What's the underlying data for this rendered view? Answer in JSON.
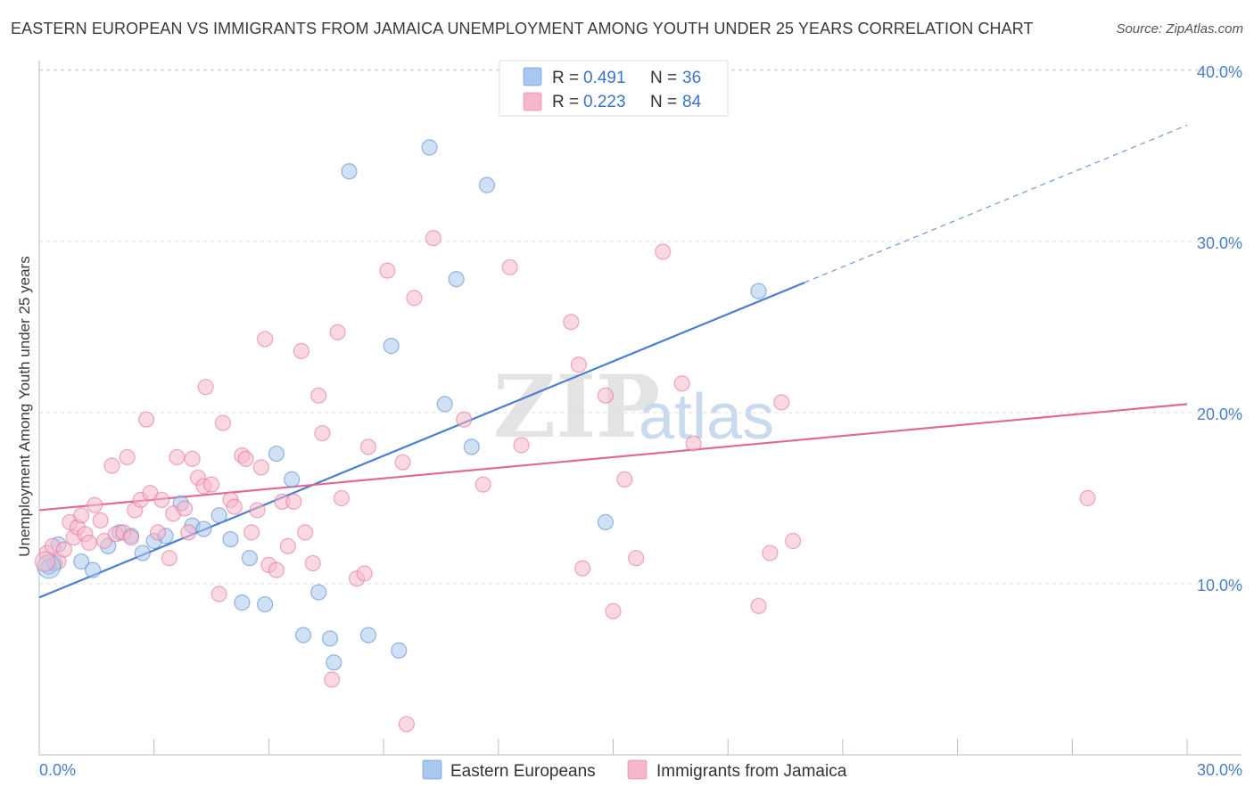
{
  "title": "EASTERN EUROPEAN VS IMMIGRANTS FROM JAMAICA UNEMPLOYMENT AMONG YOUTH UNDER 25 YEARS CORRELATION CHART",
  "source": "Source: ZipAtlas.com",
  "watermark": {
    "zip": "ZIP",
    "atlas": "atlas"
  },
  "legend": {
    "r_label": "R =",
    "n_label": "N =",
    "rows": [
      {
        "r": "0.491",
        "n": "36",
        "color": "#a9c8ef"
      },
      {
        "r": "0.223",
        "n": "84",
        "color": "#f5b8cb"
      }
    ]
  },
  "bottom_legend": [
    "Eastern Europeans",
    "Immigrants from Jamaica"
  ],
  "chart_data": {
    "type": "scatter",
    "ylabel": "Unemployment Among Youth under 25 years",
    "xlim": [
      0,
      30
    ],
    "ylim": [
      0,
      41
    ],
    "x_tick_labels": [
      "0.0%",
      "30.0%"
    ],
    "y_ticks": [
      10,
      20,
      30,
      40
    ],
    "y_tick_labels": [
      "10.0%",
      "20.0%",
      "30.0%",
      "40.0%"
    ],
    "grid": true,
    "series": [
      {
        "name": "Eastern Europeans",
        "color": "#4a7fd0",
        "fill": "#a9c8ef",
        "trend": {
          "x0": 0,
          "y0": 9.2,
          "x1": 20.0,
          "y1": 27.6,
          "dash_to_x": 30,
          "dash_to_y": 36.8
        },
        "points": [
          [
            0.25,
            11.0
          ],
          [
            0.5,
            12.3
          ],
          [
            1.1,
            11.3
          ],
          [
            1.4,
            10.8
          ],
          [
            1.8,
            12.2
          ],
          [
            2.1,
            13.0
          ],
          [
            2.4,
            12.8
          ],
          [
            2.7,
            11.8
          ],
          [
            3.0,
            12.5
          ],
          [
            3.3,
            12.8
          ],
          [
            3.7,
            14.7
          ],
          [
            4.0,
            13.4
          ],
          [
            4.3,
            13.2
          ],
          [
            4.7,
            14.0
          ],
          [
            5.0,
            12.6
          ],
          [
            5.3,
            8.9
          ],
          [
            5.5,
            11.5
          ],
          [
            5.9,
            8.8
          ],
          [
            6.2,
            17.6
          ],
          [
            6.6,
            16.1
          ],
          [
            6.9,
            7.0
          ],
          [
            7.3,
            9.5
          ],
          [
            7.6,
            6.8
          ],
          [
            7.7,
            5.4
          ],
          [
            8.1,
            34.1
          ],
          [
            8.6,
            7.0
          ],
          [
            9.2,
            23.9
          ],
          [
            9.4,
            6.1
          ],
          [
            10.2,
            35.5
          ],
          [
            10.6,
            20.5
          ],
          [
            10.9,
            27.8
          ],
          [
            11.3,
            18.0
          ],
          [
            11.7,
            33.3
          ],
          [
            14.8,
            13.6
          ],
          [
            18.8,
            27.1
          ],
          [
            0.4,
            11.2
          ]
        ]
      },
      {
        "name": "Immigrants from Jamaica",
        "color": "#e06a94",
        "fill": "#f5b8cb",
        "trend": {
          "x0": 0,
          "y0": 14.3,
          "x1": 30,
          "y1": 20.5
        },
        "points": [
          [
            0.2,
            11.8
          ],
          [
            0.35,
            12.2
          ],
          [
            0.5,
            11.3
          ],
          [
            0.65,
            12.0
          ],
          [
            0.8,
            13.6
          ],
          [
            0.9,
            12.7
          ],
          [
            1.0,
            13.3
          ],
          [
            1.1,
            14.0
          ],
          [
            1.2,
            12.9
          ],
          [
            1.3,
            12.4
          ],
          [
            1.45,
            14.6
          ],
          [
            1.6,
            13.7
          ],
          [
            1.7,
            12.5
          ],
          [
            1.9,
            16.9
          ],
          [
            2.0,
            12.9
          ],
          [
            2.2,
            13.0
          ],
          [
            2.3,
            17.4
          ],
          [
            2.4,
            12.7
          ],
          [
            2.5,
            14.3
          ],
          [
            2.65,
            14.9
          ],
          [
            2.8,
            19.6
          ],
          [
            2.9,
            15.3
          ],
          [
            3.1,
            13.0
          ],
          [
            3.2,
            14.9
          ],
          [
            3.4,
            11.5
          ],
          [
            3.5,
            14.1
          ],
          [
            3.6,
            17.4
          ],
          [
            3.8,
            14.4
          ],
          [
            3.9,
            13.0
          ],
          [
            4.0,
            17.3
          ],
          [
            4.15,
            16.2
          ],
          [
            4.3,
            15.7
          ],
          [
            4.35,
            21.5
          ],
          [
            4.5,
            15.8
          ],
          [
            4.7,
            9.4
          ],
          [
            4.8,
            19.4
          ],
          [
            5.0,
            14.9
          ],
          [
            5.1,
            14.5
          ],
          [
            5.3,
            17.5
          ],
          [
            5.4,
            17.3
          ],
          [
            5.55,
            13.0
          ],
          [
            5.7,
            14.3
          ],
          [
            5.8,
            16.8
          ],
          [
            5.9,
            24.3
          ],
          [
            6.0,
            11.1
          ],
          [
            6.2,
            10.8
          ],
          [
            6.35,
            14.8
          ],
          [
            6.5,
            12.2
          ],
          [
            6.65,
            14.8
          ],
          [
            6.85,
            23.6
          ],
          [
            6.95,
            13.0
          ],
          [
            7.15,
            11.2
          ],
          [
            7.3,
            21.0
          ],
          [
            7.4,
            18.8
          ],
          [
            7.65,
            4.4
          ],
          [
            7.8,
            24.7
          ],
          [
            7.9,
            15.0
          ],
          [
            8.3,
            10.3
          ],
          [
            8.5,
            10.6
          ],
          [
            8.6,
            18.0
          ],
          [
            9.1,
            28.3
          ],
          [
            9.5,
            17.1
          ],
          [
            9.6,
            1.8
          ],
          [
            9.8,
            26.7
          ],
          [
            10.3,
            30.2
          ],
          [
            11.1,
            19.6
          ],
          [
            11.6,
            15.8
          ],
          [
            12.3,
            28.5
          ],
          [
            12.6,
            18.1
          ],
          [
            13.9,
            25.3
          ],
          [
            14.1,
            22.8
          ],
          [
            14.2,
            10.9
          ],
          [
            14.8,
            21.0
          ],
          [
            15.0,
            8.4
          ],
          [
            15.3,
            16.1
          ],
          [
            15.6,
            11.5
          ],
          [
            16.3,
            29.4
          ],
          [
            16.8,
            21.7
          ],
          [
            17.1,
            18.2
          ],
          [
            18.8,
            8.7
          ],
          [
            19.1,
            11.8
          ],
          [
            19.4,
            20.6
          ],
          [
            19.7,
            12.5
          ],
          [
            27.4,
            15.0
          ]
        ]
      }
    ]
  }
}
